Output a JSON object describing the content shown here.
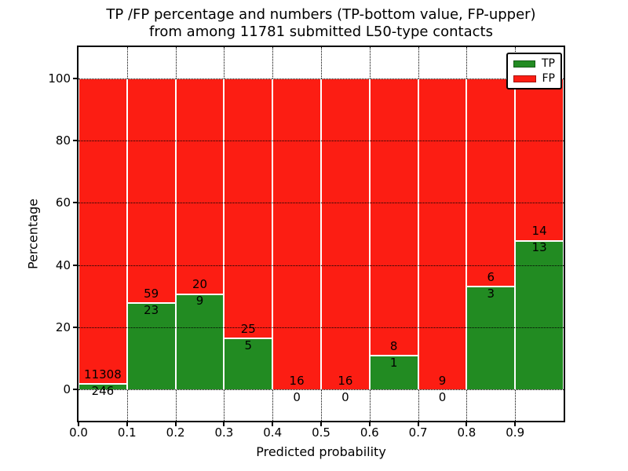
{
  "figure": {
    "title_line1": "TP /FP percentage and numbers (TP-bottom value, FP-upper)",
    "title_line2": "from among 11781 submitted L50-type contacts"
  },
  "axes": {
    "xlabel": "Predicted probability",
    "ylabel": "Percentage"
  },
  "legend": {
    "position": "upper right",
    "items": [
      {
        "label": "TP",
        "color": "#228B22"
      },
      {
        "label": "FP",
        "color": "#FC1D13"
      }
    ]
  },
  "chart_data": {
    "type": "bar",
    "stacked": true,
    "normalized": "percent of bin total (each bin stacks to 100%)",
    "title": "TP /FP percentage and numbers (TP-bottom value, FP-upper) from among 11781 submitted L50-type contacts",
    "xlabel": "Predicted probability",
    "ylabel": "Percentage",
    "total_submitted": 11781,
    "bins": [
      "0.0-0.1",
      "0.1-0.2",
      "0.2-0.3",
      "0.3-0.4",
      "0.4-0.5",
      "0.5-0.6",
      "0.6-0.7",
      "0.7-0.8",
      "0.8-0.9",
      "0.9-1.0"
    ],
    "series": [
      {
        "name": "TP",
        "color": "#228B22",
        "values": [
          246,
          23,
          9,
          5,
          0,
          0,
          1,
          0,
          3,
          13
        ]
      },
      {
        "name": "FP",
        "color": "#FC1D13",
        "values": [
          11308,
          59,
          20,
          25,
          16,
          16,
          8,
          9,
          6,
          14
        ]
      }
    ],
    "x_ticks": [
      "0.0",
      "0.1",
      "0.2",
      "0.3",
      "0.4",
      "0.5",
      "0.6",
      "0.7",
      "0.8",
      "0.9"
    ],
    "y_ticks": [
      0,
      20,
      40,
      60,
      80,
      100
    ],
    "xlim": [
      0.0,
      1.0
    ],
    "ylim": [
      -10,
      110
    ],
    "grid": "dotted",
    "legend_position": "upper right"
  }
}
